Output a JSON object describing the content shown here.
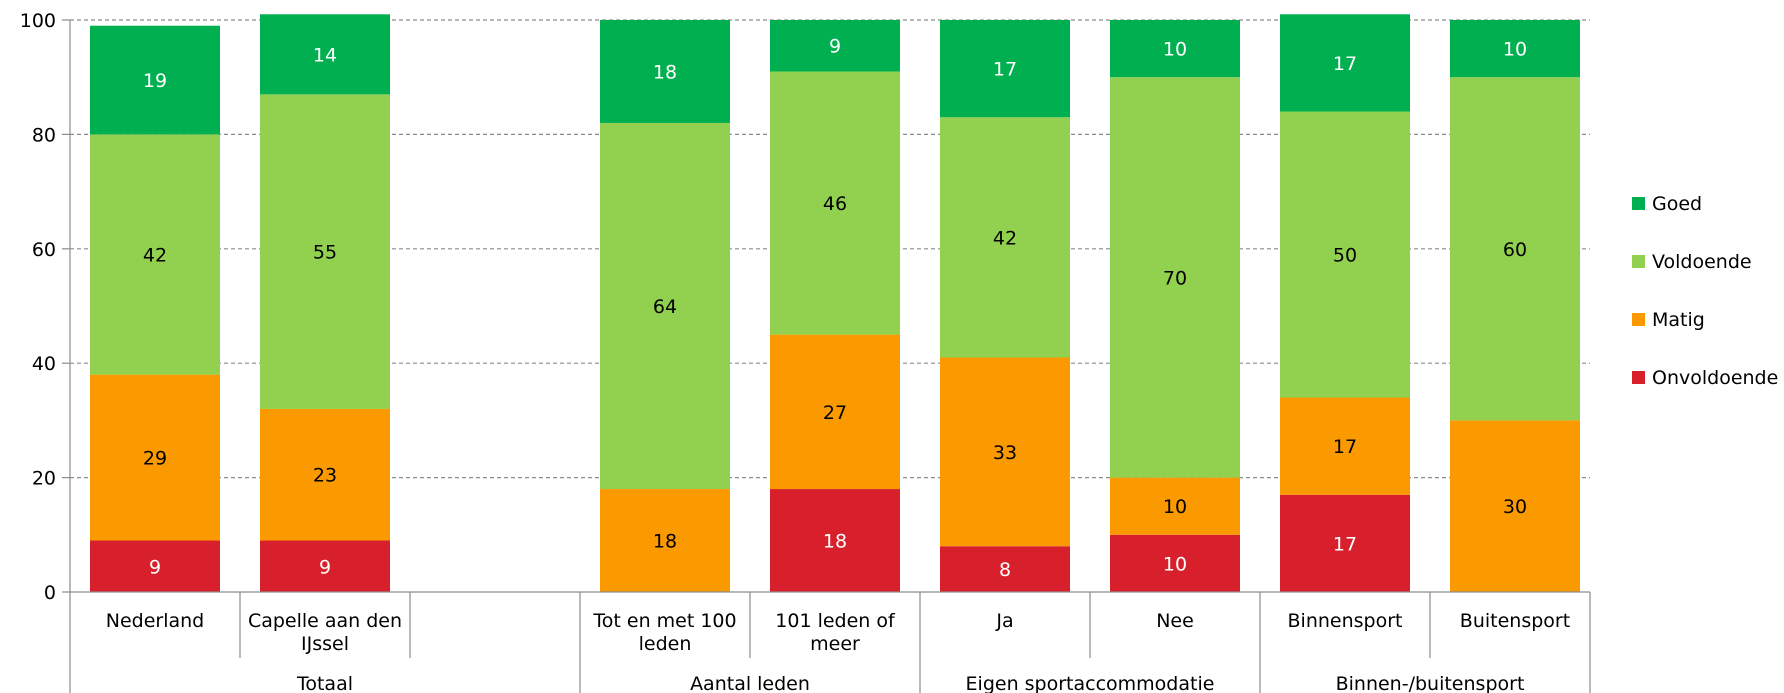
{
  "chart_data": {
    "type": "bar",
    "stacked": true,
    "ylim": [
      0,
      100
    ],
    "yticks": [
      0,
      20,
      40,
      60,
      80,
      100
    ],
    "grid": "horizontal dashed",
    "legend_position": "right",
    "categories": [
      "Nederland",
      "Capelle aan den IJssel",
      "",
      "Tot en met 100 leden",
      "101 leden of meer",
      "Ja",
      "Nee",
      "Binnensport",
      "Buitensport"
    ],
    "category_lines": [
      [
        "Nederland"
      ],
      [
        "Capelle aan den",
        "IJssel"
      ],
      [],
      [
        "Tot en met 100",
        "leden"
      ],
      [
        "101 leden of",
        "meer"
      ],
      [
        "Ja"
      ],
      [
        "Nee"
      ],
      [
        "Binnensport"
      ],
      [
        "Buitensport"
      ]
    ],
    "groups": [
      {
        "label": "Totaal",
        "from": 0,
        "to": 2
      },
      {
        "label": "Aantal leden",
        "from": 3,
        "to": 4
      },
      {
        "label": "Eigen sportaccommodatie",
        "from": 5,
        "to": 6
      },
      {
        "label": "Binnen-/buitensport",
        "from": 7,
        "to": 8
      }
    ],
    "series": [
      {
        "name": "Onvoldoende",
        "color": "#d7202c",
        "label_color": "#ffffff",
        "values": [
          9,
          9,
          null,
          0,
          18,
          8,
          10,
          17,
          0
        ],
        "labels": [
          "9",
          "9",
          "",
          "",
          "18",
          "8",
          "10",
          "17",
          ""
        ]
      },
      {
        "name": "Matig",
        "color": "#fa9a00",
        "label_color": "#000000",
        "values": [
          29,
          23,
          null,
          18,
          27,
          33,
          10,
          17,
          30
        ],
        "labels": [
          "29",
          "23",
          "",
          "18",
          "27",
          "33",
          "10",
          "17",
          "30"
        ]
      },
      {
        "name": "Voldoende",
        "color": "#92d050",
        "label_color": "#000000",
        "values": [
          42,
          55,
          null,
          64,
          46,
          42,
          70,
          50,
          60
        ],
        "labels": [
          "42",
          "55",
          "",
          "64",
          "46",
          "42",
          "70",
          "50",
          "60"
        ]
      },
      {
        "name": "Goed",
        "color": "#00b050",
        "label_color": "#ffffff",
        "values": [
          19,
          14,
          null,
          18,
          9,
          17,
          10,
          17,
          10
        ],
        "labels": [
          "19",
          "14",
          "",
          "18",
          "9",
          "17",
          "10",
          "17",
          "10"
        ]
      }
    ],
    "legend_order": [
      "Goed",
      "Voldoende",
      "Matig",
      "Onvoldoende"
    ]
  }
}
